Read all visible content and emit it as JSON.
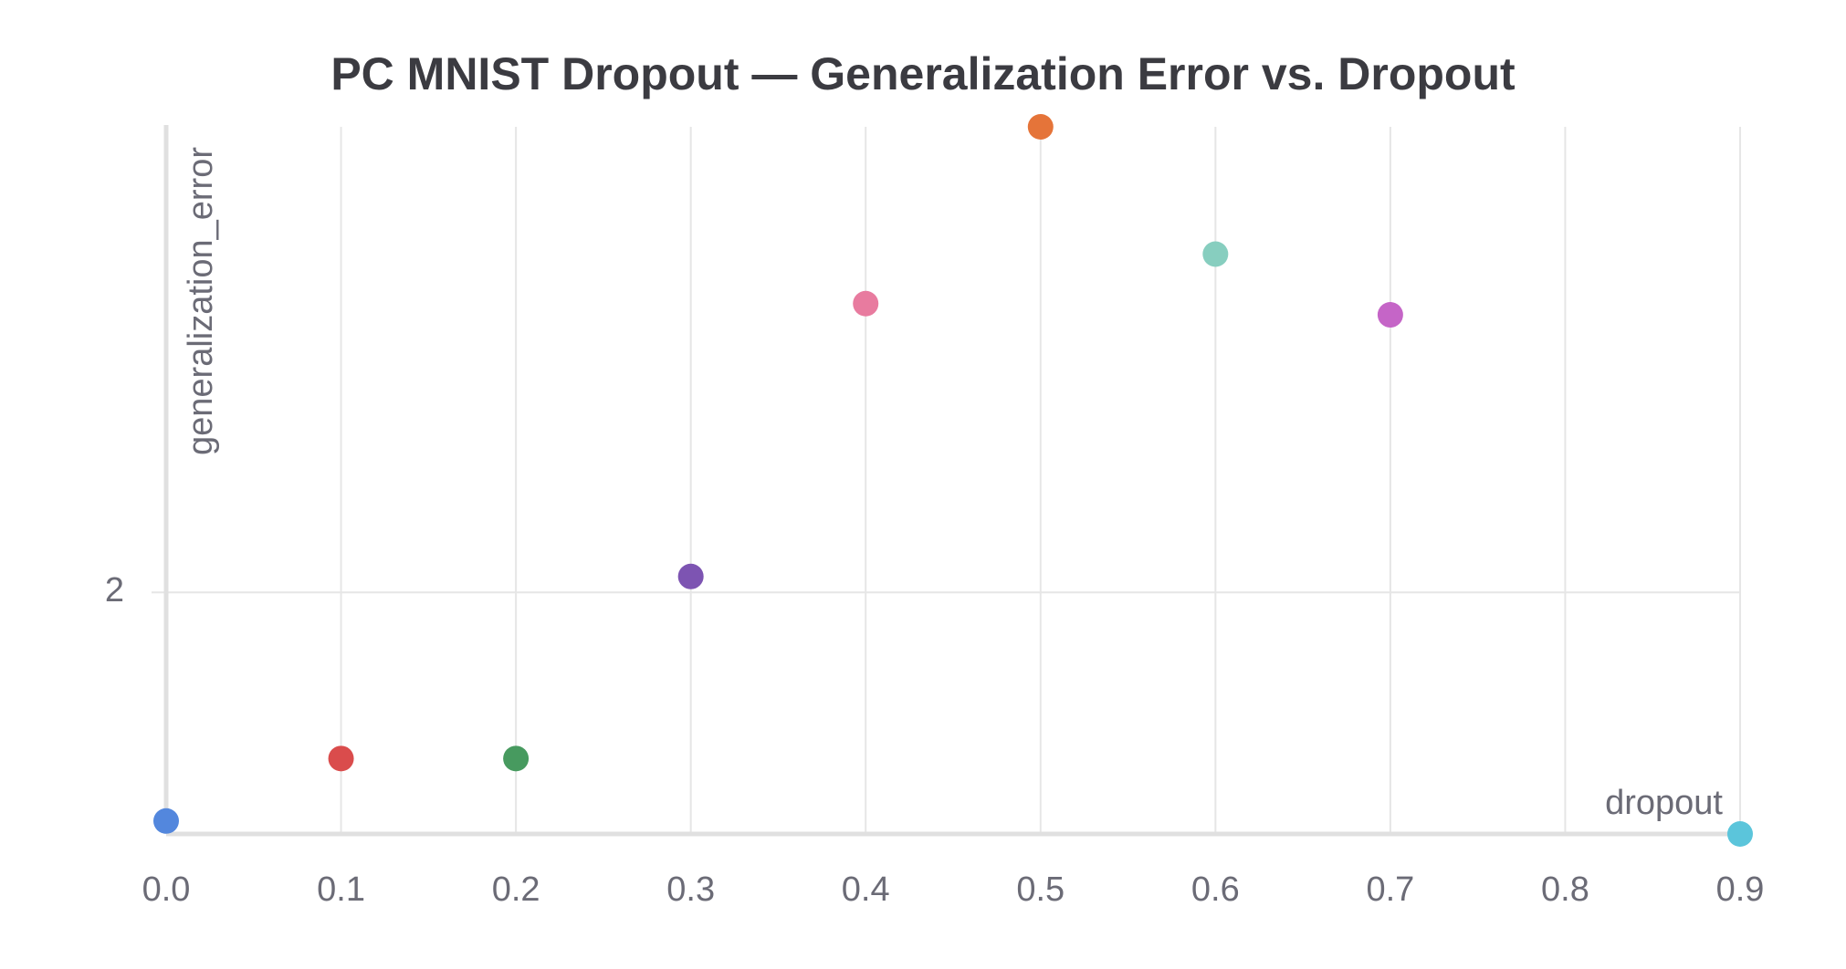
{
  "chart_data": {
    "type": "scatter",
    "title": "PC MNIST Dropout — Generalization Error vs. Dropout",
    "x_label": "dropout",
    "y_label": "generalization_error",
    "x": [
      0,
      0.1,
      0.2,
      0.3,
      0.4,
      0.5,
      0.6,
      0.7,
      0.9
    ],
    "values": [
      1.612,
      1.718,
      1.718,
      2.027,
      2.49,
      2.79,
      2.574,
      2.471,
      1.59
    ],
    "colors": [
      "#5387dd",
      "#da4c4c",
      "#479a5f",
      "#7d54b2",
      "#e87b9f",
      "#e57439",
      "#87cebf",
      "#c565c7",
      "#5bc5db"
    ],
    "xlim": [
      0,
      0.9
    ],
    "ylim": [
      1.59,
      2.79
    ],
    "xticks": [
      {
        "value": 0,
        "label": "0.0"
      },
      0.1,
      0.2,
      0.3,
      0.4,
      0.5,
      0.6,
      0.7,
      0.8,
      0.9
    ],
    "yticks": [
      2
    ],
    "grid": true
  }
}
